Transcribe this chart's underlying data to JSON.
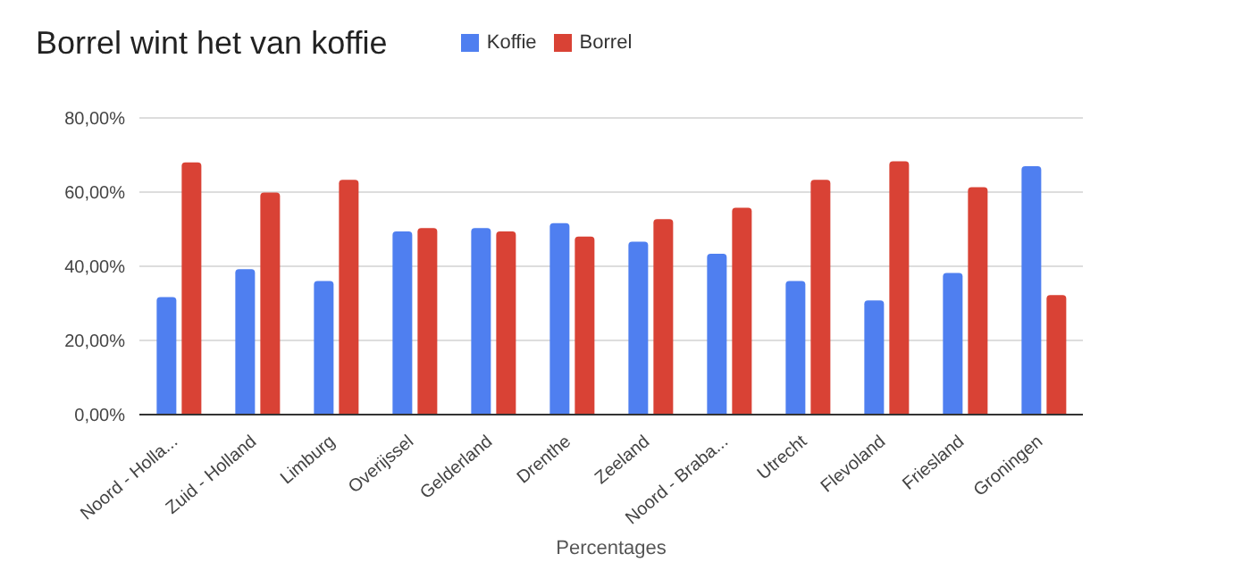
{
  "chart_data": {
    "type": "bar",
    "title": "Borrel wint het van koffie",
    "xlabel": "Percentages",
    "categories": [
      "Noord - Holla...",
      "Zuid - Holland",
      "Limburg",
      "Overijssel",
      "Gelderland",
      "Drenthe",
      "Zeeland",
      "Noord - Braba...",
      "Utrecht",
      "Flevoland",
      "Friesland",
      "Groningen"
    ],
    "series": [
      {
        "name": "Koffie",
        "color": "#4f7ff0",
        "values": [
          31.7,
          39.2,
          36,
          49.4,
          50.3,
          51.6,
          46.6,
          43.4,
          36,
          30.8,
          38.2,
          67
        ]
      },
      {
        "name": "Borrel",
        "color": "#d94235",
        "values": [
          68,
          59.9,
          63.3,
          50.3,
          49.4,
          48,
          52.7,
          55.8,
          63.3,
          68.3,
          61.3,
          32.2
        ]
      }
    ],
    "ylim": [
      0,
      80
    ],
    "yticks": [
      {
        "value": 0,
        "label": "0,00%"
      },
      {
        "value": 20,
        "label": "20,00%"
      },
      {
        "value": 40,
        "label": "40,00%"
      },
      {
        "value": 60,
        "label": "60,00%"
      },
      {
        "value": 80,
        "label": "80,00%"
      }
    ],
    "grid": "y",
    "legend": "top"
  }
}
